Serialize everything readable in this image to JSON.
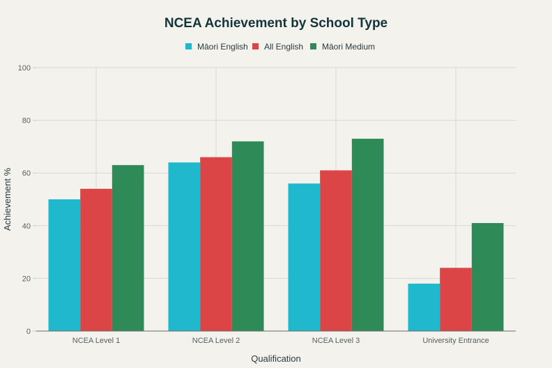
{
  "chart_data": {
    "type": "bar",
    "title": "NCEA Achievement by School Type",
    "xlabel": "Qualification",
    "ylabel": "Achievement %",
    "categories": [
      "NCEA Level 1",
      "NCEA Level 2",
      "NCEA Level 3",
      "University Entrance"
    ],
    "series": [
      {
        "name": "Māori English",
        "color": "#1fb8cd",
        "values": [
          50,
          64,
          56,
          18
        ]
      },
      {
        "name": "All English",
        "color": "#db4545",
        "values": [
          54,
          66,
          61,
          24
        ]
      },
      {
        "name": "Māori Medium",
        "color": "#2e8b57",
        "values": [
          63,
          72,
          73,
          41
        ]
      }
    ],
    "ylim": [
      0,
      100
    ],
    "yticks": [
      0,
      20,
      40,
      60,
      80,
      100
    ],
    "grid": true,
    "legend_position": "top-center"
  }
}
